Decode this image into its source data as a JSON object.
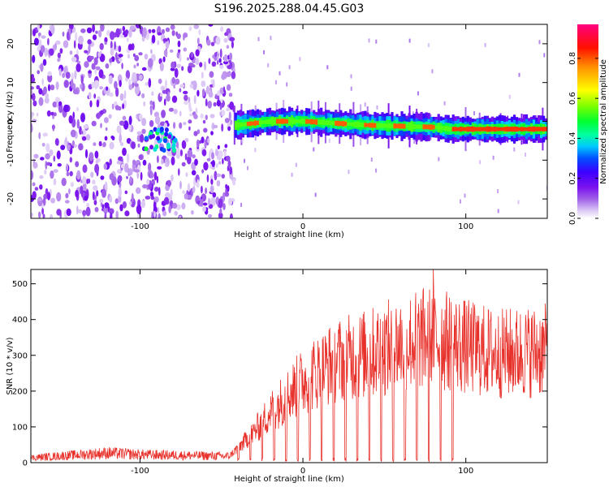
{
  "title": "S196.2025.288.04.45.G03",
  "colors": {
    "snr_line": "#e8302a",
    "frame": "#000000",
    "cmap": [
      "#ffffff",
      "#dccbf5",
      "#9b59e8",
      "#7b12ee",
      "#3b00ff",
      "#0060ff",
      "#00d0ff",
      "#00ff80",
      "#40ff00",
      "#ffff00",
      "#ff8000",
      "#ff0000",
      "#ff0080"
    ]
  },
  "chart_data": [
    {
      "type": "heatmap",
      "xlabel": "Height of straight line (km)",
      "ylabel": "Frequency (Hz)",
      "xlim": [
        -167,
        150
      ],
      "ylim": [
        -25,
        25
      ],
      "xticks": [
        -100,
        0,
        100
      ],
      "yticks": [
        -20,
        -10,
        0,
        10,
        20
      ],
      "colorbar": {
        "label": "Normalized spectral amplitude",
        "range": [
          0.0,
          0.97
        ],
        "ticks": [
          "0.0",
          "0.2",
          "0.4",
          "0.6",
          "0.8"
        ]
      },
      "features": {
        "noise_region_km": [
          -167,
          -42
        ],
        "blob_center": {
          "km": -88,
          "hz": -4.5,
          "amp": 0.35
        },
        "ridge": [
          {
            "km": -42,
            "hz": -1.0
          },
          {
            "km": -20,
            "hz": 0.0
          },
          {
            "km": 0,
            "hz": 0.0
          },
          {
            "km": 40,
            "hz": -1.0
          },
          {
            "km": 80,
            "hz": -1.5
          },
          {
            "km": 90,
            "hz": -2.0
          },
          {
            "km": 150,
            "hz": -2.0
          }
        ]
      }
    },
    {
      "type": "line",
      "xlabel": "Height of straight line (km)",
      "ylabel": "SNR (10 * v/v)",
      "xlim": [
        -167,
        150
      ],
      "ylim": [
        0,
        540
      ],
      "xticks": [
        -100,
        0,
        100
      ],
      "yticks": [
        0,
        100,
        200,
        300,
        400,
        500
      ],
      "series": [
        {
          "name": "SNR",
          "envelope_km": [
            -167,
            -120,
            -100,
            -45,
            -30,
            -20,
            0,
            20,
            40,
            60,
            80,
            100,
            120,
            150
          ],
          "envelope_snr": [
            15,
            30,
            25,
            20,
            90,
            150,
            240,
            300,
            320,
            350,
            370,
            340,
            320,
            330
          ],
          "dropouts_start_km": -40,
          "dropouts_end_km": 95,
          "dropout_period_km": 7.3,
          "peak": {
            "km": 80,
            "snr": 540
          }
        }
      ]
    }
  ]
}
